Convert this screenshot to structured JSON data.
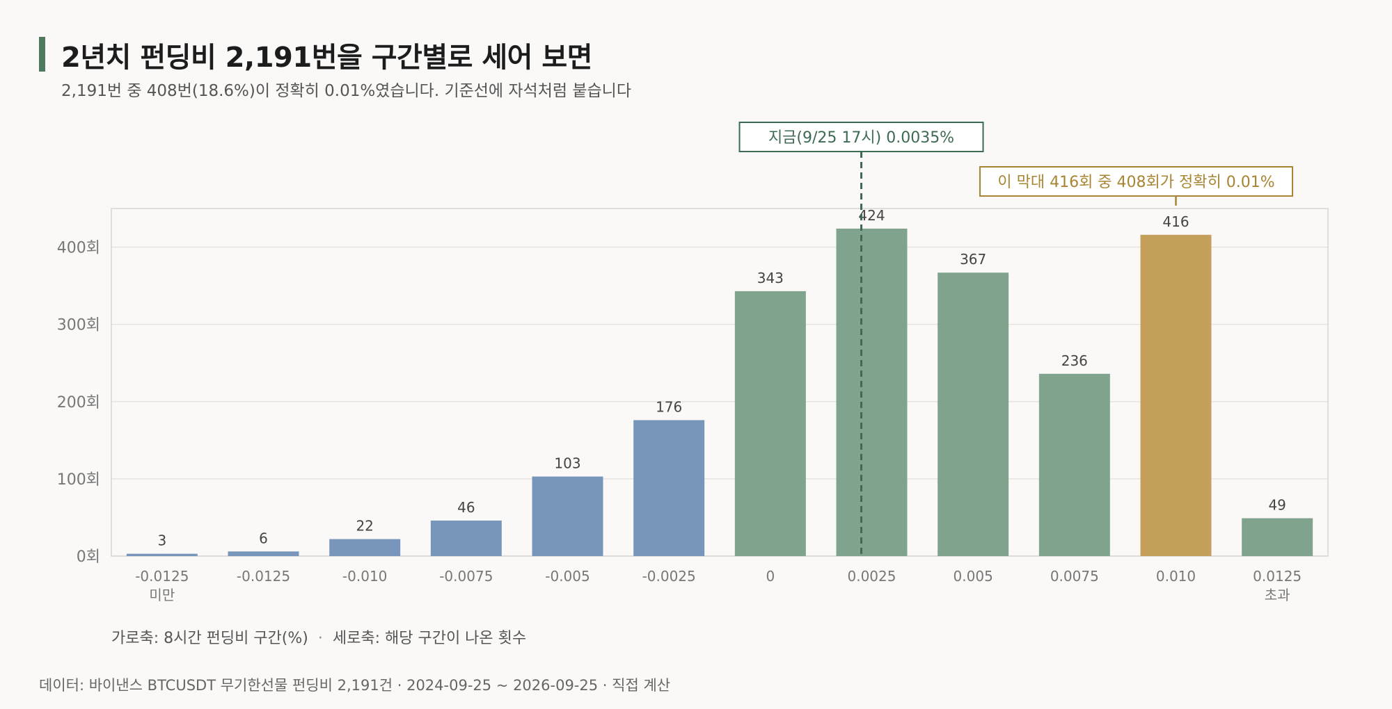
{
  "header": {
    "title": "2년치 펀딩비 2,191번을 구간별로 세어 보면",
    "subtitle": "2,191번 중 408번(18.6%)이 정확히 0.01%였습니다. 기준선에 자석처럼 붙습니다"
  },
  "chart_data": {
    "type": "bar",
    "categories": [
      [
        "-0.0125",
        "미만"
      ],
      [
        "-0.0125"
      ],
      [
        "-0.010"
      ],
      [
        "-0.0075"
      ],
      [
        "-0.005"
      ],
      [
        "-0.0025"
      ],
      [
        "0"
      ],
      [
        "0.0025"
      ],
      [
        "0.005"
      ],
      [
        "0.0075"
      ],
      [
        "0.010"
      ],
      [
        "0.0125",
        "초과"
      ]
    ],
    "values": [
      3,
      6,
      22,
      46,
      103,
      176,
      343,
      424,
      367,
      236,
      416,
      49
    ],
    "data_labels": [
      "3",
      "6",
      "22",
      "46",
      "103",
      "176",
      "343",
      "424",
      "367",
      "236",
      "416",
      "49"
    ],
    "bar_groups": [
      "negative",
      "negative",
      "negative",
      "negative",
      "negative",
      "negative",
      "positive",
      "positive",
      "positive",
      "positive",
      "highlight",
      "positive"
    ],
    "colors": {
      "negative": "#7895bc",
      "positive": "#7fa38c",
      "highlight": "#c4a05a",
      "current_line": "#3d6b51",
      "annotation": "#a88532",
      "grid": "#e6e4e0",
      "frame": "#d8d6d2",
      "tick": "#777777"
    },
    "ylim": [
      0,
      450
    ],
    "yticks": [
      0,
      100,
      200,
      300,
      400
    ],
    "ytick_labels": [
      "0회",
      "100회",
      "200회",
      "300회",
      "400회"
    ],
    "grid": true,
    "current_marker": {
      "label": "지금(9/25 17시) 0.0035%",
      "category_index": 7
    },
    "annotation": {
      "label": "이 막대 416회 중 408회가 정확히 0.01%",
      "category_index": 10
    }
  },
  "axis_caption": {
    "x": "가로축: 8시간 펀딩비 구간(%)",
    "separator": "·",
    "y": "세로축: 해당 구간이 나온 횟수"
  },
  "source": "데이터: 바이낸스 BTCUSDT 무기한선물 펀딩비 2,191건 · 2024-09-25 ~ 2026-09-25 · 직접 계산"
}
